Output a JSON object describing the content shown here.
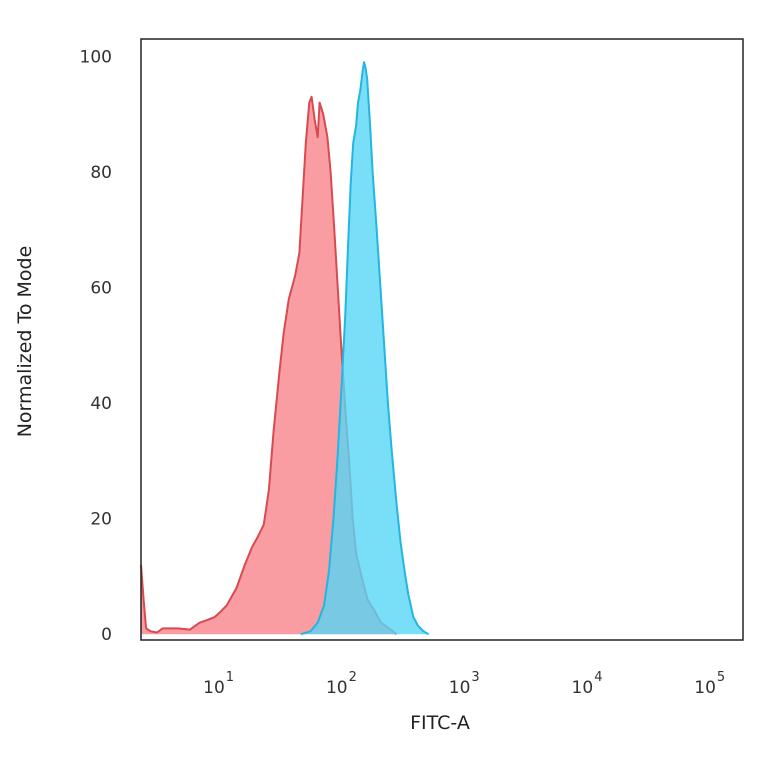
{
  "chart_data": {
    "type": "area",
    "xlabel": "FITC-A",
    "ylabel": "Normalized To Mode",
    "x_scale": "log",
    "xlim": [
      2,
      160000
    ],
    "ylim": [
      -1,
      103
    ],
    "y_ticks": [
      0,
      20,
      40,
      60,
      80,
      100
    ],
    "x_ticks": [
      {
        "value": 10,
        "base": "10",
        "exp": "1"
      },
      {
        "value": 100,
        "base": "10",
        "exp": "2"
      },
      {
        "value": 1000,
        "base": "10",
        "exp": "3"
      },
      {
        "value": 10000,
        "base": "10",
        "exp": "4"
      },
      {
        "value": 100000,
        "base": "10",
        "exp": "5"
      }
    ],
    "grid": false,
    "series": [
      {
        "fill": "#f9858b",
        "stroke": "#d84a50",
        "points": [
          [
            2,
            12
          ],
          [
            2.1,
            6
          ],
          [
            2.2,
            1
          ],
          [
            2.4,
            0.5
          ],
          [
            2.7,
            0.3
          ],
          [
            3,
            1
          ],
          [
            4,
            1
          ],
          [
            5,
            0.8
          ],
          [
            6,
            2
          ],
          [
            7,
            2.5
          ],
          [
            8,
            3
          ],
          [
            9,
            4
          ],
          [
            10,
            5
          ],
          [
            12,
            8
          ],
          [
            14,
            12
          ],
          [
            16,
            15
          ],
          [
            18,
            17
          ],
          [
            20,
            19
          ],
          [
            22,
            25
          ],
          [
            24,
            35
          ],
          [
            27,
            46
          ],
          [
            29,
            52
          ],
          [
            32,
            58
          ],
          [
            36,
            62
          ],
          [
            39,
            66
          ],
          [
            41,
            74
          ],
          [
            44,
            85
          ],
          [
            47,
            92
          ],
          [
            49,
            93
          ],
          [
            52,
            89
          ],
          [
            55,
            86
          ],
          [
            57,
            92
          ],
          [
            61,
            90
          ],
          [
            66,
            86
          ],
          [
            70,
            80
          ],
          [
            75,
            70
          ],
          [
            81,
            58
          ],
          [
            87,
            47
          ],
          [
            93,
            38
          ],
          [
            99,
            30
          ],
          [
            106,
            20
          ],
          [
            113,
            14
          ],
          [
            125,
            10
          ],
          [
            140,
            6
          ],
          [
            160,
            4
          ],
          [
            180,
            2
          ],
          [
            210,
            1
          ],
          [
            240,
            0
          ]
        ]
      },
      {
        "fill": "#58d6f5",
        "stroke": "#22b6e0",
        "points": [
          [
            40,
            0
          ],
          [
            48,
            0.5
          ],
          [
            55,
            2
          ],
          [
            62,
            5
          ],
          [
            68,
            11
          ],
          [
            74,
            20
          ],
          [
            80,
            31
          ],
          [
            86,
            43
          ],
          [
            92,
            55
          ],
          [
            97,
            67
          ],
          [
            102,
            78
          ],
          [
            107,
            85
          ],
          [
            113,
            88
          ],
          [
            117,
            92
          ],
          [
            122,
            94
          ],
          [
            127,
            97
          ],
          [
            131,
            99
          ],
          [
            135,
            98
          ],
          [
            139,
            96
          ],
          [
            147,
            88
          ],
          [
            154,
            80
          ],
          [
            165,
            71
          ],
          [
            176,
            62
          ],
          [
            190,
            51
          ],
          [
            205,
            40
          ],
          [
            220,
            32
          ],
          [
            240,
            23
          ],
          [
            260,
            16
          ],
          [
            280,
            11
          ],
          [
            300,
            7
          ],
          [
            330,
            3
          ],
          [
            360,
            1.5
          ],
          [
            400,
            0.5
          ],
          [
            440,
            0
          ]
        ]
      }
    ]
  }
}
